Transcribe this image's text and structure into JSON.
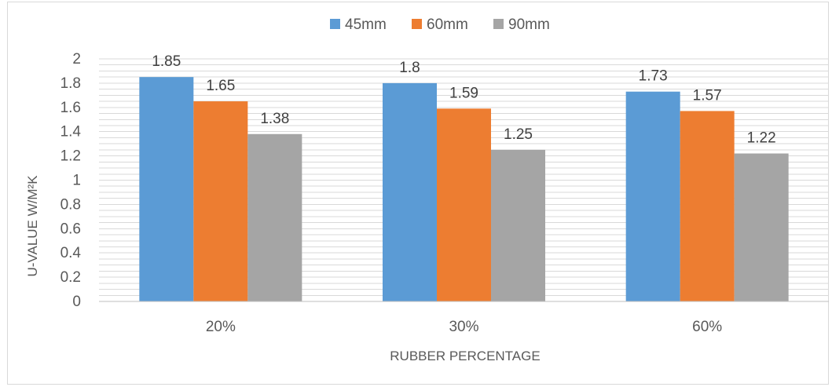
{
  "chart_data": {
    "type": "bar",
    "categories": [
      "20%",
      "30%",
      "60%"
    ],
    "series": [
      {
        "name": "45mm",
        "values": [
          1.85,
          1.8,
          1.73
        ],
        "color": "#5b9bd5"
      },
      {
        "name": "60mm",
        "values": [
          1.65,
          1.59,
          1.57
        ],
        "color": "#ed7d31"
      },
      {
        "name": "90mm",
        "values": [
          1.38,
          1.25,
          1.22
        ],
        "color": "#a5a5a5"
      }
    ],
    "data_labels": [
      [
        "1.85",
        "1.8",
        "1.73"
      ],
      [
        "1.65",
        "1.59",
        "1.57"
      ],
      [
        "1.38",
        "1.25",
        "1.22"
      ]
    ],
    "yticks": [
      "0",
      "0.2",
      "0.4",
      "0.6",
      "0.8",
      "1",
      "1.2",
      "1.4",
      "1.6",
      "1.8",
      "2"
    ],
    "ylim": [
      0,
      2
    ],
    "minor_step": 0.05,
    "xlabel": "RUBBER PERCENTAGE",
    "ylabel": "U-VALUE W/M²K",
    "legend_position": "top",
    "grid": true,
    "gridline_color": "#d9d9d9",
    "axis_color": "#bfbfbf"
  }
}
